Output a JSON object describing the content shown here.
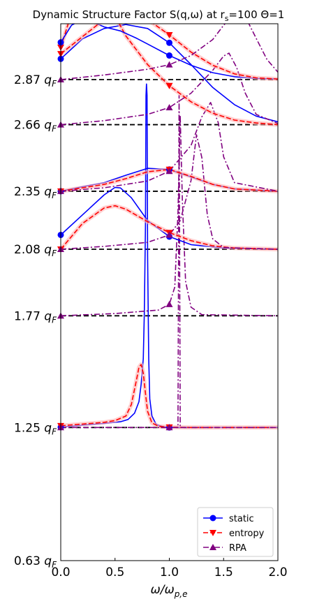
{
  "chart_data": {
    "type": "line",
    "title_main": "Dynamic Structure Factor S(q,ω) at r",
    "title_sub": "s",
    "title_tail": "=100 Θ=1",
    "xlabel_main": "ω/ω",
    "xlabel_sub": "p,e",
    "xlim": [
      0,
      2
    ],
    "x_ticks": [
      "0.0",
      "0.5",
      "1.0",
      "1.5",
      "2.0"
    ],
    "q_levels": [
      0.63,
      1.25,
      1.77,
      2.08,
      2.35,
      2.66,
      2.87
    ],
    "q_labels": [
      "0.63",
      "1.25",
      "1.77",
      "2.08",
      "2.35",
      "2.66",
      "2.87"
    ],
    "q_unit": "q",
    "q_unit_sub": "F",
    "legend": {
      "position": "lower right",
      "entries": [
        {
          "label": "static",
          "color": "#0000ff",
          "dash": "solid",
          "marker": "circle"
        },
        {
          "label": "entropy",
          "color": "#ff0000",
          "dash": "dashed",
          "marker": "triangle-down"
        },
        {
          "label": "RPA",
          "color": "#800080",
          "dash": "dashdot",
          "marker": "triangle-up"
        }
      ]
    },
    "series": [
      {
        "name": "static",
        "q": 1.25,
        "x": [
          0.0,
          0.2,
          0.4,
          0.55,
          0.62,
          0.68,
          0.72,
          0.74,
          0.76,
          0.77,
          0.78,
          0.785,
          0.79,
          0.795,
          0.8,
          0.81,
          0.82,
          0.84,
          0.88,
          0.95,
          1.0,
          1.2,
          1.5,
          2.0
        ],
        "y": [
          0.005,
          0.04,
          0.07,
          0.1,
          0.14,
          0.25,
          0.45,
          0.75,
          1.2,
          2.0,
          3.5,
          5.8,
          6.0,
          5.8,
          3.0,
          1.2,
          0.5,
          0.2,
          0.05,
          0.01,
          0.0,
          0.0,
          0.0,
          0.0
        ]
      },
      {
        "name": "entropy",
        "q": 1.25,
        "x": [
          0.0,
          0.2,
          0.4,
          0.5,
          0.6,
          0.65,
          0.7,
          0.72,
          0.74,
          0.76,
          0.78,
          0.8,
          0.84,
          0.9,
          1.0,
          1.2,
          2.0
        ],
        "y": [
          0.03,
          0.06,
          0.09,
          0.12,
          0.2,
          0.4,
          0.85,
          1.05,
          1.1,
          0.95,
          0.6,
          0.28,
          0.08,
          0.02,
          0.005,
          0.0,
          0.0
        ]
      },
      {
        "name": "RPA",
        "q": 1.25,
        "x": [
          0.0,
          0.5,
          1.0,
          1.08,
          1.09,
          1.1,
          1.12,
          1.2,
          2.0
        ],
        "y": [
          0.0,
          0.0,
          0.0,
          0.0,
          5.8,
          0.0,
          0.0,
          0.0,
          0.0
        ]
      },
      {
        "name": "RPA",
        "q": 1.77,
        "x": [
          0.0,
          0.5,
          0.9,
          1.0,
          1.05,
          1.08,
          1.1,
          1.12,
          1.15,
          1.2,
          1.3,
          2.0
        ],
        "y": [
          0.0,
          0.04,
          0.1,
          0.2,
          0.5,
          1.8,
          3.5,
          2.0,
          0.6,
          0.15,
          0.02,
          0.0
        ]
      },
      {
        "name": "static",
        "q": 2.08,
        "x": [
          0.0,
          0.2,
          0.4,
          0.5,
          0.55,
          0.65,
          0.8,
          1.0,
          1.2,
          1.5,
          2.0
        ],
        "y": [
          0.25,
          0.6,
          0.95,
          1.08,
          1.07,
          0.9,
          0.5,
          0.22,
          0.08,
          0.02,
          0.0
        ]
      },
      {
        "name": "entropy",
        "q": 2.08,
        "x": [
          0.0,
          0.2,
          0.4,
          0.5,
          0.6,
          0.8,
          1.0,
          1.2,
          1.4,
          1.6,
          2.0
        ],
        "y": [
          0.0,
          0.45,
          0.72,
          0.76,
          0.7,
          0.48,
          0.29,
          0.15,
          0.06,
          0.02,
          0.0
        ]
      },
      {
        "name": "RPA",
        "q": 2.08,
        "x": [
          0.0,
          0.4,
          0.8,
          1.0,
          1.1,
          1.2,
          1.25,
          1.3,
          1.35,
          1.4,
          1.5,
          2.0
        ],
        "y": [
          0.0,
          0.05,
          0.12,
          0.25,
          0.5,
          1.2,
          2.0,
          1.6,
          0.6,
          0.18,
          0.03,
          0.0
        ]
      },
      {
        "name": "static",
        "q": 2.35,
        "x": [
          0.0,
          0.2,
          0.4,
          0.6,
          0.8,
          1.0,
          1.2,
          1.4,
          1.6,
          2.0
        ],
        "y": [
          0.0,
          0.08,
          0.15,
          0.28,
          0.4,
          0.38,
          0.25,
          0.12,
          0.04,
          0.0
        ]
      },
      {
        "name": "entropy",
        "q": 2.35,
        "x": [
          0.0,
          0.2,
          0.4,
          0.6,
          0.8,
          1.0,
          1.2,
          1.4,
          1.6,
          2.0
        ],
        "y": [
          0.0,
          0.06,
          0.12,
          0.22,
          0.34,
          0.38,
          0.26,
          0.12,
          0.04,
          0.0
        ]
      },
      {
        "name": "RPA",
        "q": 2.35,
        "x": [
          0.0,
          0.4,
          0.8,
          1.0,
          1.2,
          1.3,
          1.38,
          1.45,
          1.5,
          1.6,
          2.0
        ],
        "y": [
          0.0,
          0.06,
          0.18,
          0.35,
          0.8,
          1.3,
          1.55,
          1.2,
          0.6,
          0.15,
          0.0
        ]
      },
      {
        "name": "static",
        "q": 2.66,
        "x": [
          0.0,
          0.2,
          0.4,
          0.6,
          0.8,
          1.0,
          1.2,
          1.4,
          1.6,
          1.8,
          2.0
        ],
        "y": [
          1.15,
          1.5,
          1.68,
          1.75,
          1.68,
          1.43,
          1.05,
          0.65,
          0.35,
          0.15,
          0.05
        ]
      },
      {
        "name": "entropy",
        "q": 2.66,
        "x": [
          0.0,
          0.1,
          0.2,
          0.3,
          0.4,
          0.5,
          0.6,
          0.8,
          1.0,
          1.2,
          1.4,
          1.6,
          1.8,
          2.0
        ],
        "y": [
          1.35,
          1.95,
          2.45,
          2.58,
          2.3,
          1.9,
          1.55,
          1.05,
          0.68,
          0.4,
          0.2,
          0.08,
          0.03,
          0.0
        ]
      },
      {
        "name": "RPA",
        "q": 2.66,
        "x": [
          0.0,
          0.4,
          0.8,
          1.0,
          1.2,
          1.4,
          1.5,
          1.55,
          1.62,
          1.7,
          1.8,
          2.0
        ],
        "y": [
          0.0,
          0.07,
          0.18,
          0.3,
          0.55,
          0.95,
          1.2,
          1.25,
          1.0,
          0.55,
          0.18,
          0.02
        ]
      },
      {
        "name": "static",
        "q": 2.87,
        "x": [
          0.0,
          0.1,
          0.2,
          0.3,
          0.4,
          0.55,
          0.7,
          0.8,
          1.0,
          1.2,
          1.4,
          1.6,
          1.8,
          2.0
        ],
        "y": [
          0.65,
          0.95,
          1.05,
          1.0,
          0.92,
          0.85,
          0.72,
          0.62,
          0.42,
          0.25,
          0.12,
          0.05,
          0.02,
          0.01
        ]
      },
      {
        "name": "entropy",
        "q": 2.87,
        "x": [
          0.0,
          0.2,
          0.4,
          0.6,
          0.7,
          0.8,
          1.0,
          1.2,
          1.4,
          1.6,
          1.8,
          2.0
        ],
        "y": [
          0.45,
          0.75,
          1.05,
          1.18,
          1.15,
          1.05,
          0.78,
          0.48,
          0.25,
          0.1,
          0.03,
          0.01
        ]
      },
      {
        "name": "RPA",
        "q": 2.87,
        "x": [
          0.0,
          0.4,
          0.8,
          1.0,
          1.2,
          1.4,
          1.5,
          1.6,
          1.65,
          1.7,
          1.8,
          1.9,
          2.0
        ],
        "y": [
          0.0,
          0.08,
          0.18,
          0.26,
          0.42,
          0.7,
          0.95,
          1.15,
          1.18,
          1.1,
          0.72,
          0.35,
          0.13
        ]
      }
    ]
  }
}
